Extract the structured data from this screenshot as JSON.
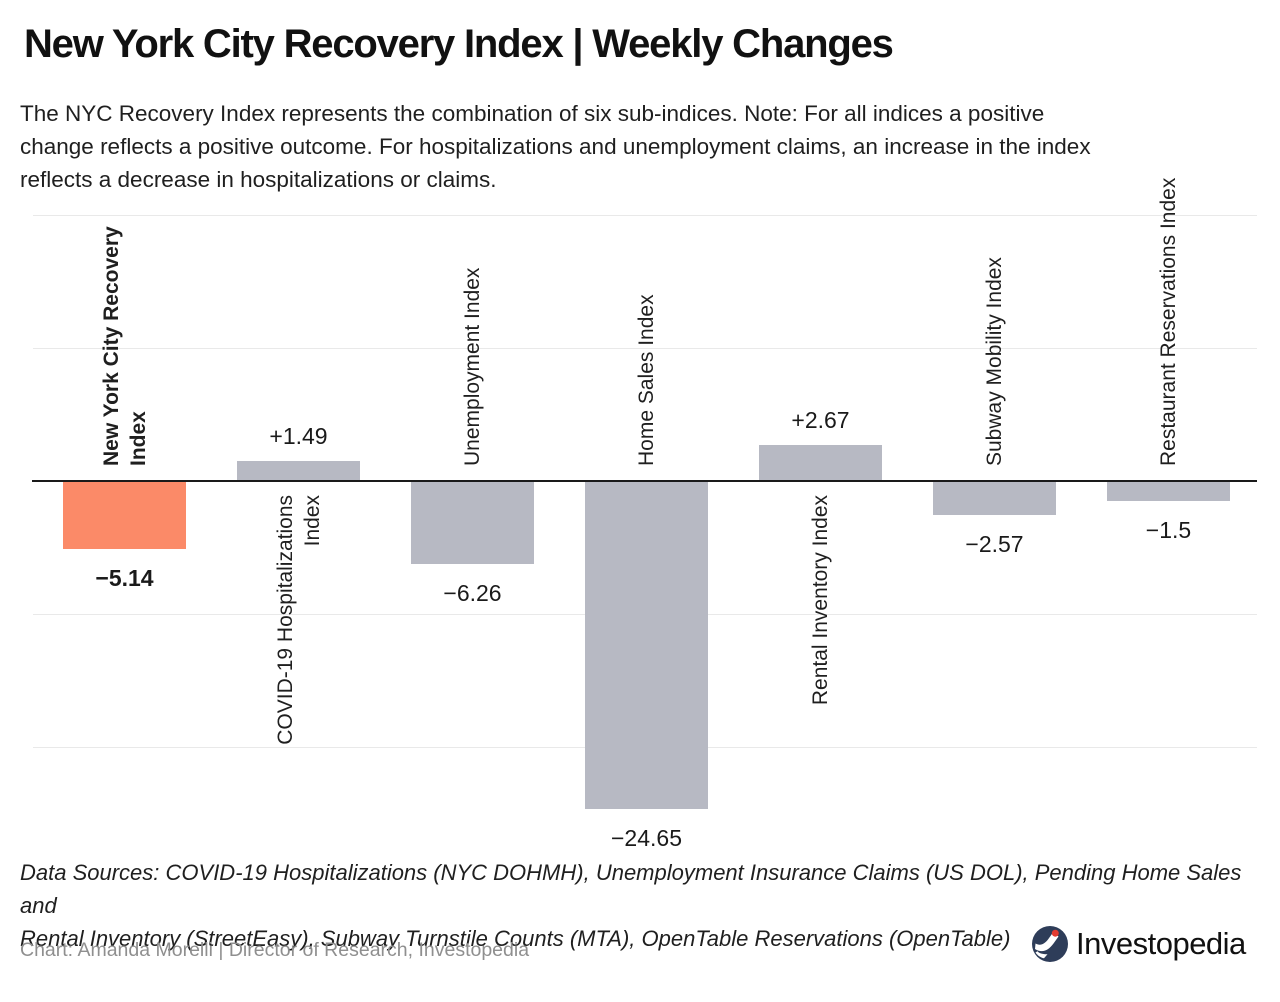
{
  "title": "New York City Recovery Index | Weekly Changes",
  "subtitle_lines": [
    "The NYC Recovery Index represents the combination of six sub-indices. Note: For all indices a positive",
    "change reflects a positive outcome. For hospitalizations and unemployment claims, an increase in the index",
    "reflects a decrease in hospitalizations or claims."
  ],
  "chart_data": {
    "type": "bar",
    "title": "New York City Recovery Index | Weekly Changes",
    "categories": [
      "New York City Recovery Index",
      "COVID-19 Hospitalizations Index",
      "Unemployment Index",
      "Home Sales Index",
      "Rental Inventory Index",
      "Subway Mobility Index",
      "Restaurant Reservations Index"
    ],
    "values": [
      -5.14,
      1.49,
      -6.26,
      -24.65,
      2.67,
      -2.57,
      -1.5
    ],
    "value_labels": [
      "−5.14",
      "+1.49",
      "−6.26",
      "−24.65",
      "+2.67",
      "−2.57",
      "−1.5"
    ],
    "bar_colors": [
      "#fb8a68",
      "#b7b9c3",
      "#b7b9c3",
      "#b7b9c3",
      "#b7b9c3",
      "#b7b9c3",
      "#b7b9c3"
    ],
    "label_layout": [
      {
        "lines": [
          "New York City Recovery",
          "Index"
        ],
        "side": "above",
        "bold": true
      },
      {
        "lines": [
          "COVID-19 Hospitalizations",
          "Index"
        ],
        "side": "below",
        "bold": false
      },
      {
        "lines": [
          "Unemployment Index"
        ],
        "side": "above",
        "bold": false
      },
      {
        "lines": [
          "Home Sales Index"
        ],
        "side": "above",
        "bold": false
      },
      {
        "lines": [
          "Rental Inventory Index"
        ],
        "side": "below",
        "bold": false
      },
      {
        "lines": [
          "Subway Mobility Index"
        ],
        "side": "above",
        "bold": false
      },
      {
        "lines": [
          "Restaurant Reservations Index"
        ],
        "side": "above",
        "bold": false
      }
    ],
    "xlabel": "",
    "ylabel": "",
    "ylim": [
      -26,
      22
    ],
    "gridline_values": [
      20,
      10,
      -10,
      -20
    ],
    "legend": "none",
    "grid": "horizontal gridlines only, no axis tick labels"
  },
  "footer": {
    "data_sources_lines": [
      "Data Sources: COVID-19 Hospitalizations (NYC DOHMH), Unemployment Insurance Claims (US DOL), Pending Home Sales and",
      "Rental Inventory (StreetEasy), Subway Turnstile Counts (MTA), OpenTable Reservations (OpenTable)"
    ],
    "credit": "Chart: Amanda Morelli | Director of Research, Investopedia",
    "brand": "Investopedia"
  },
  "colors": {
    "highlight_bar": "#fb8a68",
    "default_bar": "#b7b9c3",
    "axis_line": "#1a1a1a",
    "gridline": "#e9e9e9",
    "text": "#1f1f1f",
    "credit_text": "#8f8f8f",
    "logo_navy": "#2e3d59",
    "logo_red": "#e23b31"
  }
}
